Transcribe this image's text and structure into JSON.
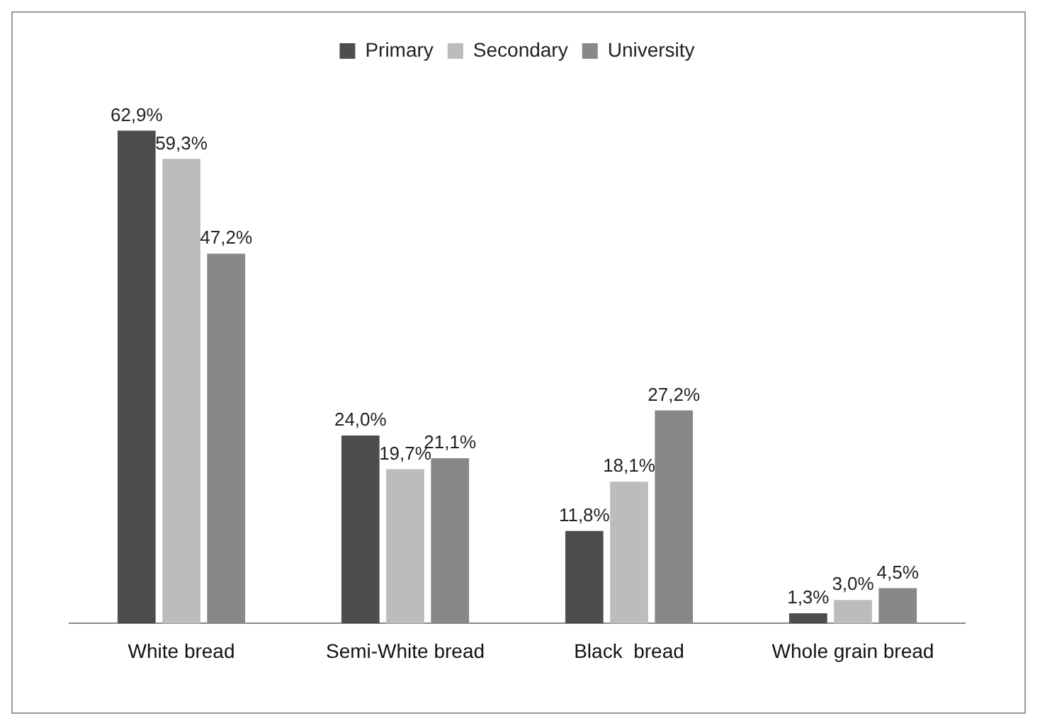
{
  "chart_data": {
    "type": "bar",
    "categories": [
      "White bread",
      "Semi-White bread",
      "Black  bread",
      "Whole grain bread"
    ],
    "series": [
      {
        "name": "Primary",
        "color": "#4d4d4d",
        "values": [
          62.9,
          24.0,
          11.8,
          1.3
        ],
        "value_labels": [
          "62,9%",
          "24,0%",
          "11,8%",
          "1,3%"
        ]
      },
      {
        "name": "Secondary",
        "color": "#bcbcbc",
        "values": [
          59.3,
          19.7,
          18.1,
          3.0
        ],
        "value_labels": [
          "59,3%",
          "19,7%",
          "18,1%",
          "3,0%"
        ]
      },
      {
        "name": "University",
        "color": "#888888",
        "values": [
          47.2,
          21.1,
          27.2,
          4.5
        ],
        "value_labels": [
          "47,2%",
          "21,1%",
          "27,2%",
          "4,5%"
        ]
      }
    ],
    "legend": "top",
    "grid": false
  }
}
